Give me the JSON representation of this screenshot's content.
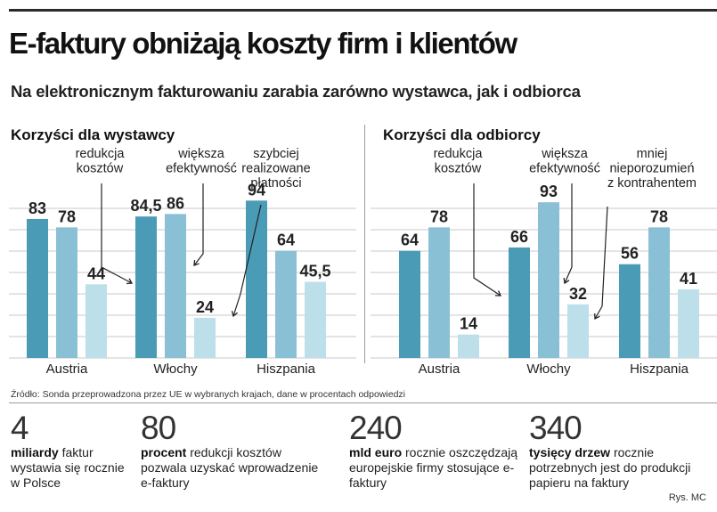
{
  "title": "E-faktury obniżają koszty firm i klientów",
  "subtitle": "Na elektronicznym fakturowaniu zarabia zarówno wystawca, jak i odbiorca",
  "colors": {
    "dark": "#4a9bb5",
    "mid": "#8ac0d5",
    "light": "#bddfe9",
    "grid": "#c8c8c8"
  },
  "chart_data": [
    {
      "type": "bar",
      "title": "Korzyści dla wystawcy",
      "categories": [
        "Austria",
        "Włochy",
        "Hiszpania"
      ],
      "series": [
        {
          "name": "redukcja kosztów",
          "values": [
            83,
            84.5,
            94
          ],
          "labels": [
            "83",
            "84,5",
            "94"
          ]
        },
        {
          "name": "większa efektywność",
          "values": [
            78,
            86,
            64
          ],
          "labels": [
            "78",
            "86",
            "64"
          ]
        },
        {
          "name": "szybciej realizowane płatności",
          "values": [
            44,
            24,
            45.5
          ],
          "labels": [
            "44",
            "24",
            "45,5"
          ]
        }
      ],
      "series_label_lines": [
        [
          "redukcja",
          "kosztów"
        ],
        [
          "większa",
          "efektywność"
        ],
        [
          "szybciej",
          "realizowane",
          "płatności"
        ]
      ],
      "ylim": [
        0,
        100
      ],
      "grid": true
    },
    {
      "type": "bar",
      "title": "Korzyści dla odbiorcy",
      "categories": [
        "Austria",
        "Włochy",
        "Hiszpania"
      ],
      "series": [
        {
          "name": "redukcja kosztów",
          "values": [
            64,
            66,
            56
          ],
          "labels": [
            "64",
            "66",
            "56"
          ]
        },
        {
          "name": "większa efektywność",
          "values": [
            78,
            93,
            78
          ],
          "labels": [
            "78",
            "93",
            "78"
          ]
        },
        {
          "name": "mniej nieporozumień z kontrahentem",
          "values": [
            14,
            32,
            41
          ],
          "labels": [
            "14",
            "32",
            "41"
          ]
        }
      ],
      "series_label_lines": [
        [
          "redukcja",
          "kosztów"
        ],
        [
          "większa",
          "efektywność"
        ],
        [
          "mniej",
          "nieporozumień",
          "z kontrahentem"
        ]
      ],
      "ylim": [
        0,
        100
      ],
      "grid": true
    }
  ],
  "source": "Źródło: Sonda przeprowadzona przez UE w wybranych krajach, dane w procentach odpowiedzi",
  "facts": [
    {
      "number": "4",
      "bold": "miliardy",
      "text": " faktur wystawia się rocznie w Polsce"
    },
    {
      "number": "80",
      "bold": "procent",
      "text": " redukcji kosztów pozwala uzyskać wprowadzenie e-faktury"
    },
    {
      "number": "240",
      "bold": "mld euro",
      "text": " rocznie oszczędzają europejskie firmy stosujące e-faktury"
    },
    {
      "number": "340",
      "bold": "tysięcy drzew",
      "text": " rocznie potrzebnych jest do produkcji papieru na faktury"
    }
  ],
  "credit": "Rys. MC"
}
